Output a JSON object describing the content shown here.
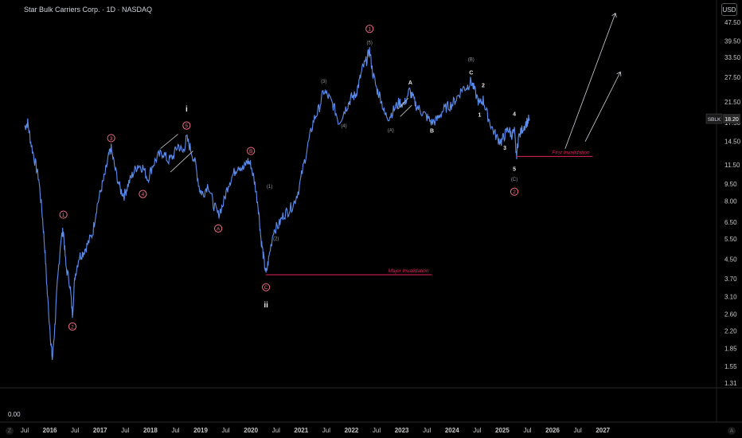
{
  "header": {
    "title": "Star Bulk Carriers Corp. · 1D · NASDAQ",
    "currency": "USD"
  },
  "bottom_pane": {
    "value_label": "0.00"
  },
  "corners": {
    "left": "Z",
    "right": "A"
  },
  "colors": {
    "price": "#5b8def",
    "invalidation": "#e0245e",
    "circle": "#f06e84",
    "text": "#d1d4dc",
    "axis": "#c8c8c8",
    "background": "#000000"
  },
  "chart_data": {
    "type": "line",
    "scale": "log",
    "symbol": "SBLK",
    "last_price": "18.20",
    "x_ticks": [
      "Jul",
      "2016",
      "Jul",
      "2017",
      "Jul",
      "2018",
      "Jul",
      "2019",
      "Jul",
      "2020",
      "Jul",
      "2021",
      "Jul",
      "2022",
      "Jul",
      "2023",
      "Jul",
      "2024",
      "Jul",
      "2025",
      "Jul",
      "2026",
      "Jul",
      "2027"
    ],
    "y_ticks": [
      "47.50",
      "39.50",
      "33.50",
      "27.50",
      "21.50",
      "17.50",
      "14.50",
      "11.50",
      "9.50",
      "8.00",
      "6.50",
      "5.50",
      "4.50",
      "3.70",
      "3.10",
      "2.60",
      "2.20",
      "1.85",
      "1.55",
      "1.31"
    ],
    "price_series": [
      [
        2015.5,
        16.8
      ],
      [
        2015.56,
        17.5
      ],
      [
        2015.62,
        14.5
      ],
      [
        2015.7,
        12.0
      ],
      [
        2015.78,
        10.0
      ],
      [
        2015.85,
        7.0
      ],
      [
        2015.9,
        5.0
      ],
      [
        2015.95,
        3.2
      ],
      [
        2016.02,
        2.0
      ],
      [
        2016.05,
        1.65
      ],
      [
        2016.1,
        2.3
      ],
      [
        2016.15,
        3.5
      ],
      [
        2016.22,
        5.5
      ],
      [
        2016.27,
        6.0
      ],
      [
        2016.32,
        4.2
      ],
      [
        2016.4,
        3.5
      ],
      [
        2016.45,
        2.6
      ],
      [
        2016.5,
        3.8
      ],
      [
        2016.58,
        4.6
      ],
      [
        2016.66,
        4.8
      ],
      [
        2016.75,
        5.2
      ],
      [
        2016.85,
        5.8
      ],
      [
        2016.93,
        7.5
      ],
      [
        2017.02,
        9.0
      ],
      [
        2017.1,
        10.5
      ],
      [
        2017.17,
        12.5
      ],
      [
        2017.22,
        13.5
      ],
      [
        2017.3,
        11.0
      ],
      [
        2017.4,
        9.0
      ],
      [
        2017.48,
        8.5
      ],
      [
        2017.56,
        9.5
      ],
      [
        2017.65,
        10.5
      ],
      [
        2017.75,
        11.5
      ],
      [
        2017.85,
        11.2
      ],
      [
        2017.95,
        10.0
      ],
      [
        2018.05,
        11.5
      ],
      [
        2018.15,
        12.5
      ],
      [
        2018.25,
        13.0
      ],
      [
        2018.35,
        12.0
      ],
      [
        2018.45,
        12.5
      ],
      [
        2018.55,
        14.0
      ],
      [
        2018.65,
        13.0
      ],
      [
        2018.72,
        15.0
      ],
      [
        2018.8,
        13.5
      ],
      [
        2018.9,
        11.5
      ],
      [
        2018.98,
        9.0
      ],
      [
        2019.05,
        8.6
      ],
      [
        2019.15,
        9.5
      ],
      [
        2019.25,
        7.8
      ],
      [
        2019.35,
        7.0
      ],
      [
        2019.45,
        7.8
      ],
      [
        2019.55,
        9.5
      ],
      [
        2019.65,
        10.5
      ],
      [
        2019.75,
        11.5
      ],
      [
        2019.85,
        11.0
      ],
      [
        2019.93,
        12.0
      ],
      [
        2020.0,
        11.5
      ],
      [
        2020.08,
        9.5
      ],
      [
        2020.15,
        7.5
      ],
      [
        2020.2,
        5.5
      ],
      [
        2020.25,
        4.6
      ],
      [
        2020.3,
        3.85
      ],
      [
        2020.36,
        4.6
      ],
      [
        2020.45,
        6.0
      ],
      [
        2020.55,
        6.3
      ],
      [
        2020.65,
        7.0
      ],
      [
        2020.75,
        7.3
      ],
      [
        2020.85,
        7.8
      ],
      [
        2020.95,
        9.0
      ],
      [
        2021.05,
        11.5
      ],
      [
        2021.15,
        14.5
      ],
      [
        2021.25,
        18.0
      ],
      [
        2021.35,
        20.0
      ],
      [
        2021.45,
        24.0
      ],
      [
        2021.55,
        22.5
      ],
      [
        2021.65,
        20.5
      ],
      [
        2021.75,
        17.5
      ],
      [
        2021.85,
        19.5
      ],
      [
        2021.93,
        21.0
      ],
      [
        2022.0,
        22.5
      ],
      [
        2022.08,
        23.0
      ],
      [
        2022.15,
        26.0
      ],
      [
        2022.22,
        30.0
      ],
      [
        2022.3,
        32.5
      ],
      [
        2022.36,
        36.0
      ],
      [
        2022.42,
        29.0
      ],
      [
        2022.5,
        24.5
      ],
      [
        2022.58,
        22.5
      ],
      [
        2022.66,
        19.0
      ],
      [
        2022.75,
        18.5
      ],
      [
        2022.85,
        20.0
      ],
      [
        2022.95,
        21.5
      ],
      [
        2023.05,
        21.0
      ],
      [
        2023.15,
        24.0
      ],
      [
        2023.22,
        22.5
      ],
      [
        2023.3,
        20.5
      ],
      [
        2023.4,
        19.5
      ],
      [
        2023.5,
        18.5
      ],
      [
        2023.6,
        17.5
      ],
      [
        2023.7,
        18.0
      ],
      [
        2023.8,
        19.5
      ],
      [
        2023.9,
        20.5
      ],
      [
        2024.0,
        21.0
      ],
      [
        2024.1,
        22.5
      ],
      [
        2024.2,
        24.5
      ],
      [
        2024.3,
        25.0
      ],
      [
        2024.38,
        26.5
      ],
      [
        2024.45,
        24.0
      ],
      [
        2024.55,
        21.0
      ],
      [
        2024.62,
        22.0
      ],
      [
        2024.7,
        19.0
      ],
      [
        2024.8,
        16.5
      ],
      [
        2024.9,
        15.0
      ],
      [
        2024.98,
        14.5
      ],
      [
        2025.05,
        15.5
      ],
      [
        2025.12,
        16.5
      ],
      [
        2025.18,
        15.5
      ],
      [
        2025.24,
        16.0
      ],
      [
        2025.28,
        12.5
      ],
      [
        2025.32,
        15.0
      ],
      [
        2025.4,
        16.5
      ],
      [
        2025.48,
        17.5
      ],
      [
        2025.54,
        18.2
      ]
    ],
    "horizontal_lines": [
      {
        "label": "Major Invalidation",
        "price": 3.85,
        "x_start": 2020.3,
        "x_end": 2023.6
      },
      {
        "label": "First Invalidation",
        "price": 12.5,
        "x_start": 2025.28,
        "x_end": 2026.8
      }
    ],
    "projection_arrows": [
      {
        "from": [
          2026.25,
          13.5
        ],
        "to": [
          2027.25,
          52.0
        ]
      },
      {
        "from": [
          2026.65,
          14.5
        ],
        "to": [
          2027.35,
          29.0
        ]
      }
    ],
    "annotations": [
      {
        "text": "1",
        "style": "circle",
        "x": 2016.27,
        "y": 7.0
      },
      {
        "text": "2",
        "style": "circle",
        "x": 2016.45,
        "y": 2.3
      },
      {
        "text": "3",
        "style": "circle",
        "x": 2017.22,
        "y": 15.0
      },
      {
        "text": "4",
        "style": "circle",
        "x": 2017.85,
        "y": 8.6
      },
      {
        "text": "5",
        "style": "circle",
        "x": 2018.72,
        "y": 17.0
      },
      {
        "text": "i",
        "style": "plain",
        "x": 2018.72,
        "y": 20.0
      },
      {
        "text": "A",
        "style": "circle",
        "x": 2019.35,
        "y": 6.1
      },
      {
        "text": "B",
        "style": "circle",
        "x": 2020.0,
        "y": 13.2
      },
      {
        "text": "C",
        "style": "circle",
        "x": 2020.3,
        "y": 3.4
      },
      {
        "text": "ii",
        "style": "plain",
        "x": 2020.3,
        "y": 2.85
      },
      {
        "text": "(1)",
        "style": "small",
        "x": 2020.37,
        "y": 9.3
      },
      {
        "text": "(2)",
        "style": "small",
        "x": 2020.5,
        "y": 5.55
      },
      {
        "text": "(3)",
        "style": "small",
        "x": 2021.45,
        "y": 26.5
      },
      {
        "text": "(4)",
        "style": "small",
        "x": 2021.85,
        "y": 17.0
      },
      {
        "text": "(5)",
        "style": "small",
        "x": 2022.36,
        "y": 39.0
      },
      {
        "text": "1",
        "style": "circle",
        "x": 2022.36,
        "y": 44.5
      },
      {
        "text": "(A)",
        "style": "small",
        "x": 2022.78,
        "y": 16.3
      },
      {
        "text": "A",
        "style": "plain",
        "x": 2023.17,
        "y": 26.2
      },
      {
        "text": "B",
        "style": "plain",
        "x": 2023.6,
        "y": 16.2
      },
      {
        "text": "(B)",
        "style": "small",
        "x": 2024.38,
        "y": 33.0
      },
      {
        "text": "C",
        "style": "plain",
        "x": 2024.38,
        "y": 29.0
      },
      {
        "text": "1",
        "style": "plain",
        "x": 2024.55,
        "y": 19.0
      },
      {
        "text": "2",
        "style": "plain",
        "x": 2024.62,
        "y": 25.5
      },
      {
        "text": "3",
        "style": "plain",
        "x": 2025.05,
        "y": 13.7
      },
      {
        "text": "4",
        "style": "plain",
        "x": 2025.24,
        "y": 19.2
      },
      {
        "text": "5",
        "style": "plain",
        "x": 2025.24,
        "y": 11.1
      },
      {
        "text": "(C)",
        "style": "small",
        "x": 2025.24,
        "y": 10.0
      },
      {
        "text": "2",
        "style": "circle",
        "x": 2025.24,
        "y": 8.8
      }
    ],
    "channels": [
      {
        "upper": [
          [
            2018.2,
            13.5
          ],
          [
            2018.55,
            15.6
          ]
        ],
        "lower": [
          [
            2018.4,
            10.7
          ],
          [
            2018.85,
            13.2
          ]
        ]
      },
      {
        "upper": [
          [
            2022.92,
            20.0
          ],
          [
            2023.13,
            22.3
          ]
        ],
        "lower": [
          [
            2022.97,
            18.6
          ],
          [
            2023.2,
            20.8
          ]
        ]
      }
    ]
  }
}
